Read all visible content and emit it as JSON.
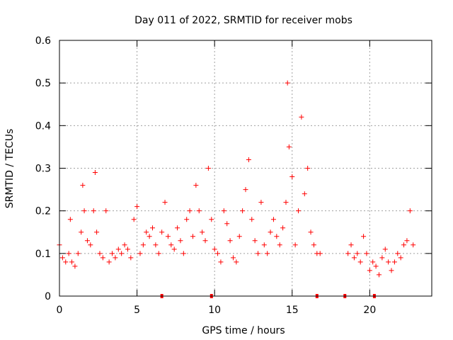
{
  "chart_data": {
    "type": "scatter",
    "title": "Day 011 of 2022, SRMTID for receiver mobs",
    "xlabel": "GPS time / hours",
    "ylabel": "SRMTID / TECUs",
    "xlim": [
      0,
      24
    ],
    "ylim": [
      0,
      0.6
    ],
    "x_ticks": [
      0,
      5,
      10,
      15,
      20
    ],
    "y_ticks": [
      0,
      0.1,
      0.2,
      0.3,
      0.4,
      0.5,
      0.6
    ],
    "x_tick_labels": [
      "0",
      "5",
      "10",
      "15",
      "20"
    ],
    "y_tick_labels": [
      "0",
      "0.1",
      "0.2",
      "0.3",
      "0.4",
      "0.5",
      "0.6"
    ],
    "grid": true,
    "marker": "plus",
    "series_color": "#ff0000",
    "series": [
      {
        "name": "SRMTID",
        "x": [
          0.0,
          0.2,
          0.4,
          0.6,
          0.7,
          0.8,
          1.0,
          1.2,
          1.4,
          1.5,
          1.6,
          1.8,
          2.0,
          2.2,
          2.3,
          2.4,
          2.6,
          2.8,
          3.0,
          3.2,
          3.4,
          3.6,
          3.8,
          4.0,
          4.2,
          4.4,
          4.6,
          4.8,
          5.0,
          5.2,
          5.4,
          5.6,
          5.8,
          6.0,
          6.2,
          6.4,
          6.6,
          6.8,
          7.0,
          7.2,
          7.4,
          7.6,
          7.8,
          8.0,
          8.2,
          8.4,
          8.6,
          8.8,
          9.0,
          9.2,
          9.4,
          9.6,
          9.8,
          10.0,
          10.2,
          10.4,
          10.6,
          10.8,
          11.0,
          11.2,
          11.4,
          11.6,
          11.8,
          12.0,
          12.2,
          12.4,
          12.6,
          12.8,
          13.0,
          13.2,
          13.4,
          13.6,
          13.8,
          14.0,
          14.2,
          14.4,
          14.6,
          14.7,
          14.8,
          15.0,
          15.2,
          15.4,
          15.6,
          15.8,
          16.0,
          16.2,
          16.4,
          16.6,
          16.8,
          18.6,
          18.8,
          19.0,
          19.2,
          19.4,
          19.6,
          19.8,
          20.0,
          20.2,
          20.4,
          20.6,
          20.8,
          21.0,
          21.2,
          21.4,
          21.6,
          21.8,
          22.0,
          22.2,
          22.4,
          22.6,
          22.8
        ],
        "y": [
          0.12,
          0.09,
          0.08,
          0.1,
          0.18,
          0.08,
          0.07,
          0.1,
          0.15,
          0.26,
          0.2,
          0.13,
          0.12,
          0.2,
          0.29,
          0.15,
          0.1,
          0.09,
          0.2,
          0.08,
          0.1,
          0.09,
          0.11,
          0.1,
          0.12,
          0.11,
          0.09,
          0.18,
          0.21,
          0.1,
          0.12,
          0.15,
          0.14,
          0.16,
          0.12,
          0.1,
          0.15,
          0.22,
          0.14,
          0.12,
          0.11,
          0.16,
          0.13,
          0.1,
          0.18,
          0.2,
          0.14,
          0.26,
          0.2,
          0.15,
          0.13,
          0.3,
          0.18,
          0.11,
          0.1,
          0.08,
          0.2,
          0.17,
          0.13,
          0.09,
          0.08,
          0.14,
          0.2,
          0.25,
          0.32,
          0.18,
          0.13,
          0.1,
          0.22,
          0.12,
          0.1,
          0.15,
          0.18,
          0.14,
          0.12,
          0.16,
          0.22,
          0.5,
          0.35,
          0.28,
          0.12,
          0.2,
          0.42,
          0.24,
          0.3,
          0.15,
          0.12,
          0.1,
          0.1,
          0.1,
          0.12,
          0.09,
          0.1,
          0.08,
          0.14,
          0.1,
          0.06,
          0.08,
          0.07,
          0.05,
          0.09,
          0.11,
          0.08,
          0.06,
          0.08,
          0.1,
          0.09,
          0.12,
          0.13,
          0.2,
          0.12
        ]
      }
    ],
    "zero_markers_x": [
      6.6,
      9.8,
      16.6,
      18.4,
      20.3
    ]
  }
}
